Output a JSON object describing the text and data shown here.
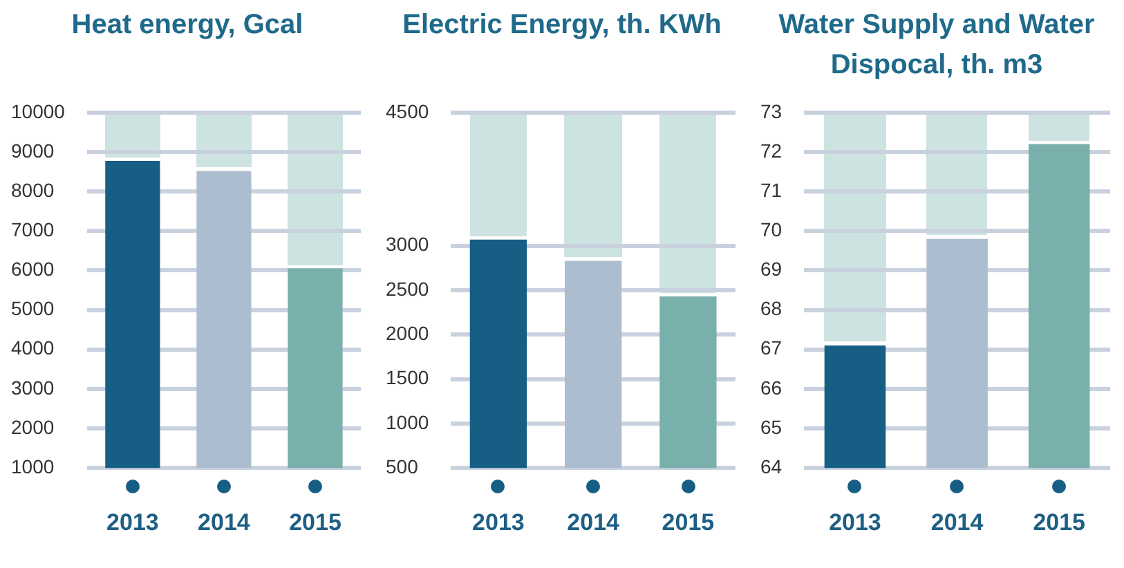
{
  "chart_data": [
    {
      "type": "bar",
      "title": "Heat energy, Gcal",
      "categories": [
        "2013",
        "2014",
        "2015"
      ],
      "values": [
        8770,
        8520,
        6050
      ],
      "colors": [
        "#175e84",
        "#adbdd0",
        "#79b0ab"
      ],
      "ylim": [
        1000,
        10000
      ],
      "yticks": [
        1000,
        2000,
        3000,
        4000,
        5000,
        6000,
        7000,
        8000,
        9000,
        10000
      ],
      "grid": "y",
      "legend": false
    },
    {
      "type": "bar",
      "title": "Electric Energy, th. KWh",
      "categories": [
        "2013",
        "2014",
        "2015"
      ],
      "values": [
        3070,
        2830,
        2430
      ],
      "colors": [
        "#175e84",
        "#adbdd0",
        "#79b0ab"
      ],
      "ylim": [
        500,
        4500
      ],
      "yticks": [
        500,
        1000,
        1500,
        2000,
        2500,
        3000,
        4500
      ],
      "grid": "y",
      "legend": false
    },
    {
      "type": "bar",
      "title": "Water Supply and Water Dispocal, th. m3",
      "categories": [
        "2013",
        "2014",
        "2015"
      ],
      "values": [
        67.1,
        69.8,
        72.2
      ],
      "colors": [
        "#175e84",
        "#adbdd0",
        "#79b0ab"
      ],
      "ylim": [
        64,
        73
      ],
      "yticks": [
        64,
        65,
        66,
        67,
        68,
        69,
        70,
        71,
        72,
        73
      ],
      "grid": "y",
      "legend": false
    }
  ]
}
